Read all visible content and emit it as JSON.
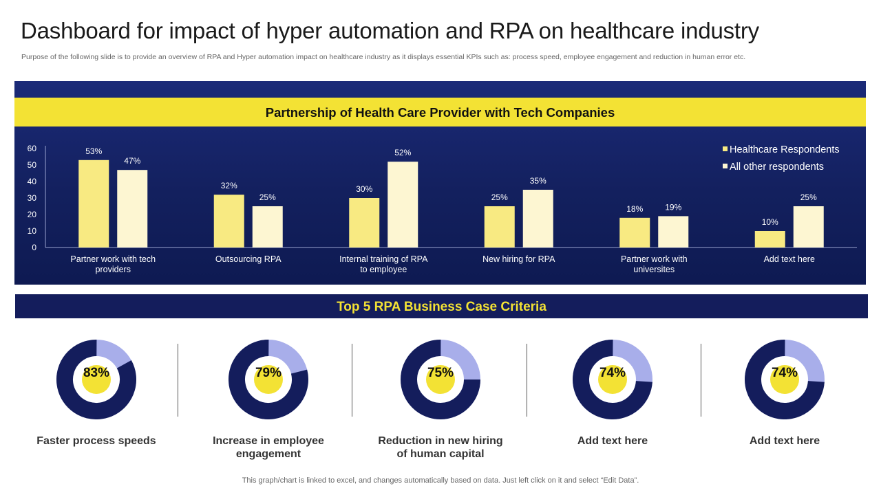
{
  "header": {
    "title": "Dashboard for impact of hyper automation and RPA on healthcare industry",
    "subtitle": "Purpose of the following slide is to provide an overview of RPA and Hyper automation impact on healthcare industry as it displays essential KPIs such as: process speed, employee engagement and reduction in human error etc."
  },
  "colors": {
    "panel": "#16236a",
    "band": "#f3e234",
    "series1": "#f8ea82",
    "series2": "#fdf6d2",
    "donut_dark": "#141d5c",
    "donut_light": "#a8aeea",
    "center": "#f3e234"
  },
  "chart_data": {
    "type": "bar",
    "title": "Partnership of Health Care Provider with Tech Companies",
    "categories": [
      "Partner work with tech providers",
      "Outsourcing RPA",
      "Internal training of RPA to employee",
      "New hiring for RPA",
      "Partner work with universites",
      "Add text here"
    ],
    "series": [
      {
        "name": "Healthcare Respondents",
        "values": [
          53,
          32,
          30,
          25,
          18,
          10
        ],
        "labels": [
          "53%",
          "32%",
          "30%",
          "25%",
          "18%",
          "10%"
        ]
      },
      {
        "name": "All other respondents",
        "values": [
          47,
          25,
          52,
          35,
          19,
          25
        ],
        "labels": [
          "47%",
          "25%",
          "52%",
          "35%",
          "19%",
          "25%"
        ]
      }
    ],
    "yticks": [
      "0",
      "10",
      "20",
      "30",
      "40",
      "50",
      "60"
    ],
    "ylim": [
      0,
      60
    ],
    "legend": "top-right"
  },
  "section2": {
    "title": "Top 5 RPA Business Case Criteria"
  },
  "kpis": [
    {
      "value": "83%",
      "pct": 83,
      "label": "Faster process speeds"
    },
    {
      "value": "79%",
      "pct": 79,
      "label": "Increase in employee engagement"
    },
    {
      "value": "75%",
      "pct": 75,
      "label": "Reduction in new hiring of human capital"
    },
    {
      "value": "74%",
      "pct": 74,
      "label": "Add text here"
    },
    {
      "value": "74%",
      "pct": 74,
      "label": "Add text here"
    }
  ],
  "footer": {
    "note": "This graph/chart is linked to excel,  and changes automatically based on data. Just left click on it and select “Edit Data”."
  }
}
